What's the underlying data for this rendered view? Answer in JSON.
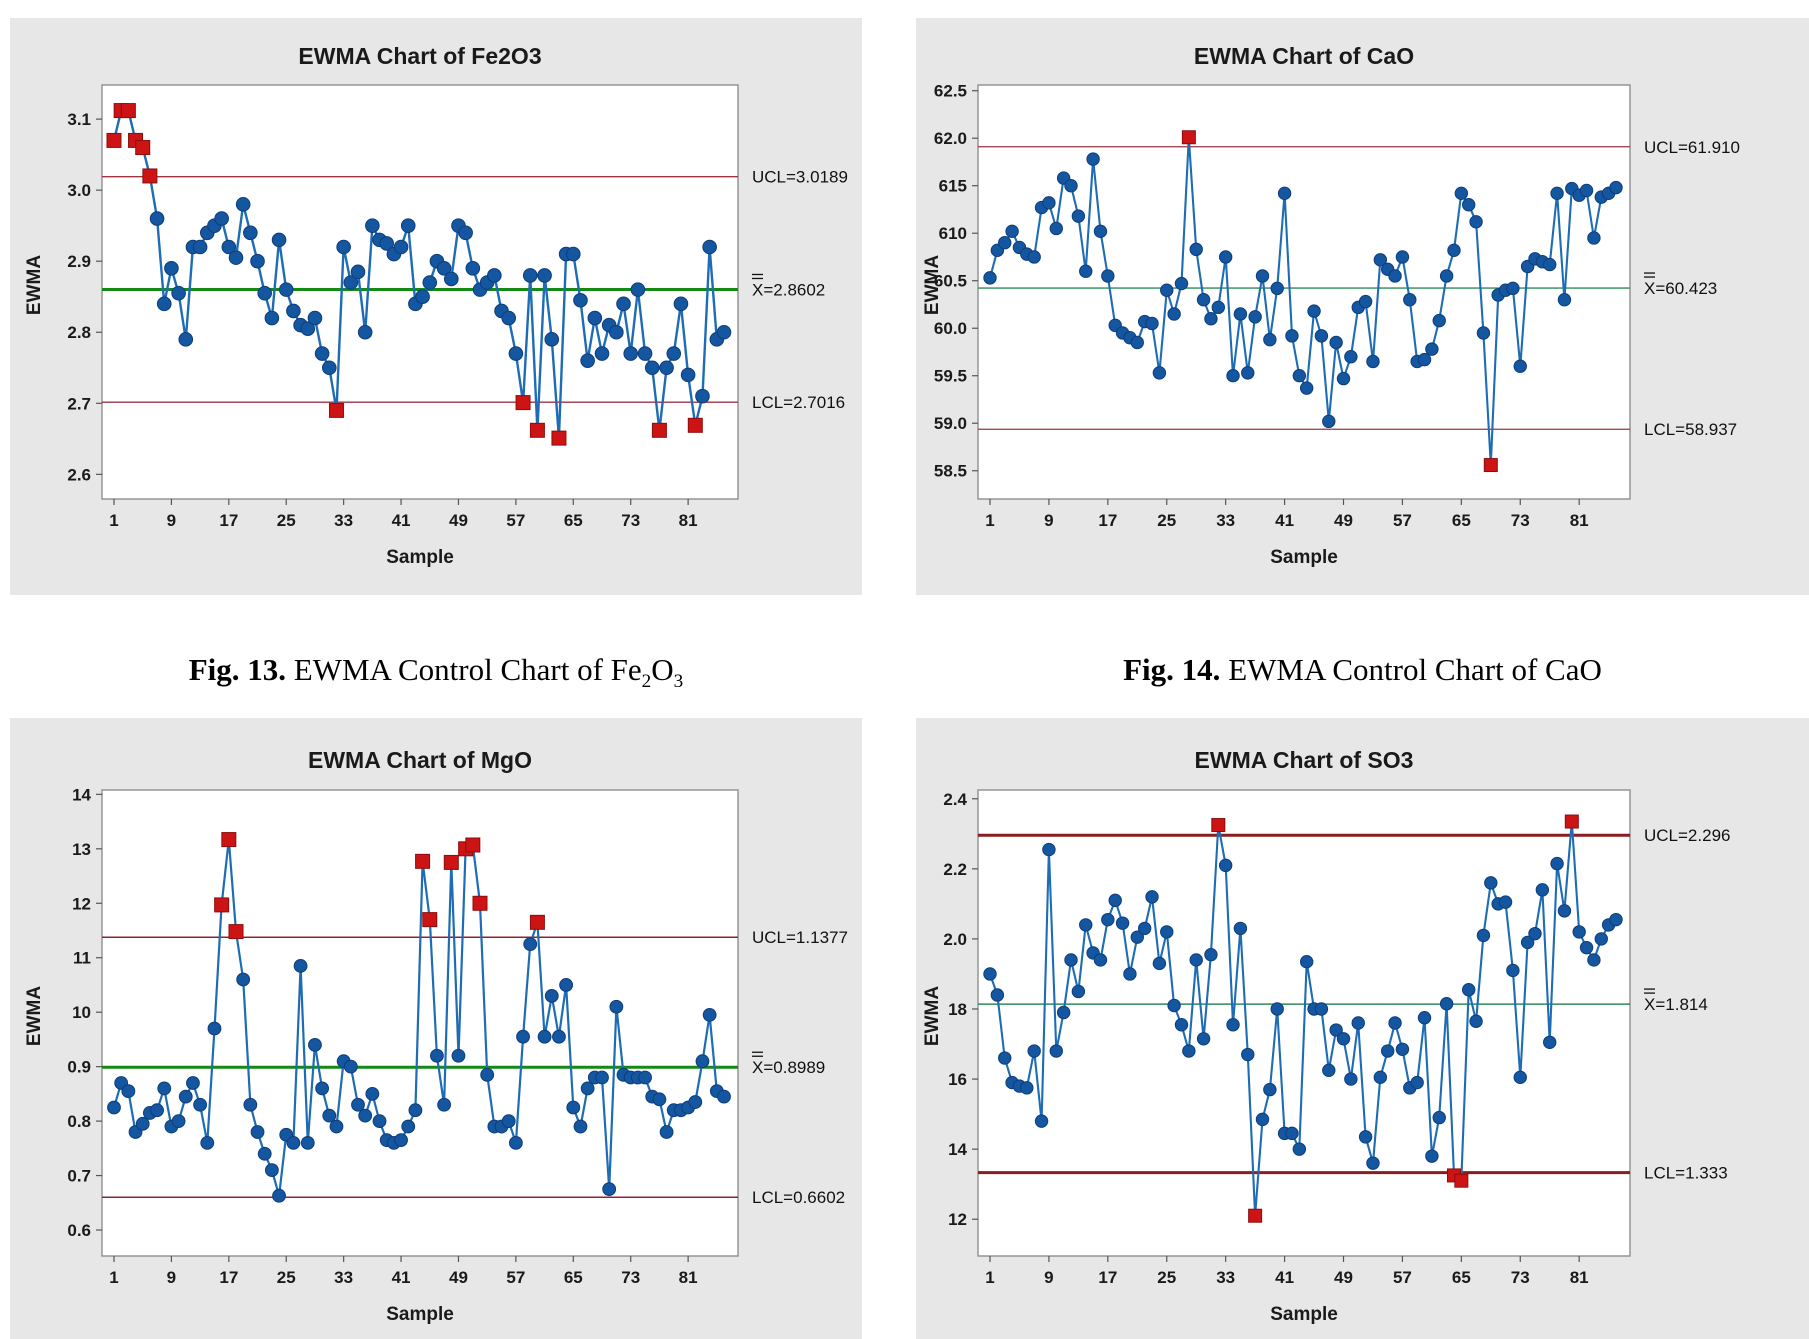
{
  "captions": [
    {
      "parts": {
        "label": "Fig. 13.",
        "text": " EWMA Control Chart of Fe",
        "sub1": "2",
        "mid": "O",
        "sub2": "3"
      }
    },
    {
      "parts": {
        "label": "Fig. 14.",
        "text": " EWMA Control Chart of CaO",
        "sub1": "",
        "mid": "",
        "sub2": ""
      }
    }
  ],
  "colors": {
    "card_bg": "#e8e7e7",
    "plot_bg": "#ffffff",
    "plot_border": "#8f8f8f",
    "series_line": "#1d6cb5",
    "marker_fill": "#1456a0",
    "marker_stroke": "#0d3d7a",
    "out_fill": "#cc1414",
    "out_stroke": "#8e0d0d",
    "tick_color": "#555555",
    "text_color": "#1a1a1a"
  },
  "chart_data": [
    {
      "type": "line",
      "title": "EWMA Chart of Fe2O3",
      "xlabel": "Sample",
      "ylabel": "EWMA",
      "ylim": [
        2.585,
        3.148
      ],
      "yticks": [
        {
          "v": 3.1,
          "label": "3.1"
        },
        {
          "v": 3.0,
          "label": "3.0"
        },
        {
          "v": 2.9,
          "label": "2.9"
        },
        {
          "v": 2.8,
          "label": "2.8"
        },
        {
          "v": 2.7,
          "label": "2.7"
        },
        {
          "v": 2.6,
          "label": "2.6"
        }
      ],
      "xticks": [
        1,
        9,
        17,
        25,
        33,
        41,
        49,
        57,
        65,
        73,
        81
      ],
      "limits": {
        "ucl": {
          "value": 3.0189,
          "label": "UCL=3.0189"
        },
        "center": {
          "value": 2.8602,
          "label": "X=2.8602",
          "xbar": true
        },
        "lcl": {
          "value": 2.7016,
          "label": "LCL=2.7016"
        }
      },
      "style": {
        "limit_color": "#9c3540",
        "limit_width": 1.4,
        "center_color": "#148a14",
        "center_width": 3,
        "line_width": 2.4,
        "marker_r": 6.8,
        "sq": 14
      },
      "values": [
        3.07,
        3.112,
        3.112,
        3.07,
        3.06,
        3.02,
        2.96,
        2.84,
        2.89,
        2.855,
        2.79,
        2.92,
        2.92,
        2.94,
        2.95,
        2.96,
        2.92,
        2.905,
        2.98,
        2.94,
        2.9,
        2.855,
        2.82,
        2.93,
        2.86,
        2.83,
        2.81,
        2.805,
        2.82,
        2.77,
        2.75,
        2.69,
        2.92,
        2.87,
        2.885,
        2.8,
        2.95,
        2.93,
        2.925,
        2.91,
        2.92,
        2.95,
        2.84,
        2.85,
        2.87,
        2.9,
        2.89,
        2.875,
        2.95,
        2.94,
        2.89,
        2.86,
        2.87,
        2.88,
        2.83,
        2.82,
        2.77,
        2.701,
        2.88,
        2.662,
        2.88,
        2.79,
        2.651,
        2.91,
        2.91,
        2.845,
        2.76,
        2.82,
        2.77,
        2.81,
        2.8,
        2.84,
        2.77,
        2.86,
        2.77,
        2.75,
        2.662,
        2.75,
        2.77,
        2.84,
        2.74,
        2.669,
        2.71,
        2.92,
        2.79,
        2.8
      ],
      "out_of_control": [
        1,
        2,
        3,
        4,
        5,
        6,
        32,
        58,
        60,
        63,
        77,
        82
      ]
    },
    {
      "type": "line",
      "title": "EWMA Chart of CaO",
      "xlabel": "Sample",
      "ylabel": "EWMA",
      "ylim": [
        58.35,
        62.56
      ],
      "yticks": [
        {
          "v": 62.5,
          "label": "62.5"
        },
        {
          "v": 62.0,
          "label": "62.0"
        },
        {
          "v": 61.5,
          "label": "615"
        },
        {
          "v": 61.0,
          "label": "610"
        },
        {
          "v": 60.5,
          "label": "60.5"
        },
        {
          "v": 60.0,
          "label": "60.0"
        },
        {
          "v": 59.5,
          "label": "59.5"
        },
        {
          "v": 59.0,
          "label": "59.0"
        },
        {
          "v": 58.5,
          "label": "58.5"
        }
      ],
      "xticks": [
        1,
        9,
        17,
        25,
        33,
        41,
        49,
        57,
        65,
        73,
        81
      ],
      "limits": {
        "ucl": {
          "value": 61.91,
          "label": "UCL=61.910"
        },
        "center": {
          "value": 60.423,
          "label": "X=60.423",
          "xbar": true
        },
        "lcl": {
          "value": 58.937,
          "label": "LCL=58.937"
        }
      },
      "style": {
        "limit_color": "#9c3540",
        "limit_width": 1.3,
        "center_color": "#2e8b57",
        "center_width": 1.4,
        "line_width": 2.1,
        "marker_r": 6.2,
        "sq": 13
      },
      "values": [
        60.53,
        60.82,
        60.9,
        61.02,
        60.85,
        60.78,
        60.75,
        61.27,
        61.32,
        61.05,
        61.58,
        61.5,
        61.18,
        60.6,
        61.78,
        61.02,
        60.55,
        60.03,
        59.95,
        59.9,
        59.85,
        60.07,
        60.05,
        59.53,
        60.4,
        60.15,
        60.47,
        62.01,
        60.83,
        60.3,
        60.1,
        60.22,
        60.75,
        59.5,
        60.15,
        59.53,
        60.12,
        60.55,
        59.88,
        60.42,
        61.42,
        59.92,
        59.5,
        59.37,
        60.18,
        59.92,
        59.02,
        59.85,
        59.47,
        59.7,
        60.22,
        60.28,
        59.65,
        60.72,
        60.62,
        60.55,
        60.75,
        60.3,
        59.65,
        59.67,
        59.78,
        60.08,
        60.55,
        60.82,
        61.42,
        61.3,
        61.12,
        59.95,
        58.56,
        60.35,
        60.4,
        60.42,
        59.6,
        60.65,
        60.73,
        60.7,
        60.67,
        61.42,
        60.3,
        61.47,
        61.4,
        61.45,
        60.95,
        61.38,
        61.42,
        61.48
      ],
      "out_of_control": [
        28,
        69
      ]
    },
    {
      "type": "line",
      "title": "EWMA Chart of MgO",
      "xlabel": "Sample",
      "ylabel": "EWMA",
      "ylim": [
        0.578,
        1.408
      ],
      "yticks": [
        {
          "v": 1.4,
          "label": "14"
        },
        {
          "v": 1.3,
          "label": "13"
        },
        {
          "v": 1.2,
          "label": "12"
        },
        {
          "v": 1.1,
          "label": "11"
        },
        {
          "v": 1.0,
          "label": "10"
        },
        {
          "v": 0.9,
          "label": "0.9"
        },
        {
          "v": 0.8,
          "label": "0.8"
        },
        {
          "v": 0.7,
          "label": "0.7"
        },
        {
          "v": 0.6,
          "label": "0.6"
        }
      ],
      "xticks": [
        1,
        9,
        17,
        25,
        33,
        41,
        49,
        57,
        65,
        73,
        81
      ],
      "limits": {
        "ucl": {
          "value": 1.1377,
          "label": "UCL=1.1377"
        },
        "center": {
          "value": 0.8989,
          "label": "X=0.8989",
          "xbar": true
        },
        "lcl": {
          "value": 0.6602,
          "label": "LCL=0.6602"
        }
      },
      "style": {
        "limit_color": "#8f2430",
        "limit_width": 1.5,
        "center_color": "#148a14",
        "center_width": 3,
        "line_width": 2.2,
        "marker_r": 6.4,
        "sq": 14
      },
      "values": [
        0.825,
        0.87,
        0.855,
        0.78,
        0.795,
        0.815,
        0.82,
        0.86,
        0.79,
        0.8,
        0.845,
        0.87,
        0.83,
        0.76,
        0.97,
        1.197,
        1.317,
        1.148,
        1.06,
        0.83,
        0.78,
        0.74,
        0.71,
        0.663,
        0.775,
        0.76,
        1.085,
        0.76,
        0.94,
        0.86,
        0.81,
        0.79,
        0.91,
        0.9,
        0.83,
        0.81,
        0.85,
        0.8,
        0.765,
        0.76,
        0.765,
        0.79,
        0.82,
        1.277,
        1.17,
        0.92,
        0.83,
        1.275,
        0.92,
        1.3,
        1.307,
        1.2,
        0.885,
        0.79,
        0.79,
        0.8,
        0.76,
        0.955,
        1.125,
        1.165,
        0.955,
        1.03,
        0.955,
        1.05,
        0.825,
        0.79,
        0.86,
        0.88,
        0.88,
        0.675,
        1.01,
        0.885,
        0.88,
        0.88,
        0.88,
        0.845,
        0.84,
        0.78,
        0.82,
        0.82,
        0.825,
        0.835,
        0.91,
        0.995,
        0.855,
        0.845
      ],
      "out_of_control": [
        16,
        17,
        18,
        44,
        45,
        48,
        50,
        51,
        52,
        60
      ]
    },
    {
      "type": "line",
      "title": "EWMA Chart of SO3",
      "xlabel": "Sample",
      "ylabel": "EWMA",
      "ylim": [
        1.135,
        2.425
      ],
      "yticks": [
        {
          "v": 2.4,
          "label": "2.4"
        },
        {
          "v": 2.2,
          "label": "2.2"
        },
        {
          "v": 2.0,
          "label": "2.0"
        },
        {
          "v": 1.8,
          "label": "18"
        },
        {
          "v": 1.6,
          "label": "16"
        },
        {
          "v": 1.4,
          "label": "14"
        },
        {
          "v": 1.2,
          "label": "12"
        }
      ],
      "xticks": [
        1,
        9,
        17,
        25,
        33,
        41,
        49,
        57,
        65,
        73,
        81
      ],
      "limits": {
        "ucl": {
          "value": 2.296,
          "label": "UCL=2.296"
        },
        "center": {
          "value": 1.814,
          "label": "X=1.814",
          "xbar": true
        },
        "lcl": {
          "value": 1.333,
          "label": "LCL=1.333"
        }
      },
      "style": {
        "limit_color": "#8b1d20",
        "limit_width": 3,
        "center_color": "#2e8b57",
        "center_width": 1.5,
        "line_width": 2.1,
        "marker_r": 6.2,
        "sq": 13
      },
      "values": [
        1.9,
        1.84,
        1.66,
        1.59,
        1.58,
        1.575,
        1.68,
        1.48,
        2.255,
        1.68,
        1.79,
        1.94,
        1.85,
        2.04,
        1.96,
        1.94,
        2.055,
        2.11,
        2.045,
        1.9,
        2.005,
        2.03,
        2.12,
        1.93,
        2.02,
        1.81,
        1.755,
        1.68,
        1.94,
        1.715,
        1.955,
        2.325,
        2.21,
        1.755,
        2.03,
        1.67,
        1.21,
        1.485,
        1.57,
        1.8,
        1.445,
        1.445,
        1.4,
        1.935,
        1.8,
        1.8,
        1.625,
        1.74,
        1.715,
        1.6,
        1.76,
        1.435,
        1.36,
        1.605,
        1.68,
        1.76,
        1.685,
        1.575,
        1.59,
        1.775,
        1.38,
        1.49,
        1.815,
        1.325,
        1.31,
        1.855,
        1.765,
        2.01,
        2.16,
        2.1,
        2.105,
        1.91,
        1.605,
        1.99,
        2.015,
        2.14,
        1.705,
        2.215,
        2.08,
        2.335,
        2.02,
        1.975,
        1.94,
        2.0,
        2.04,
        2.055
      ],
      "out_of_control": [
        32,
        37,
        64,
        65,
        80
      ]
    }
  ]
}
